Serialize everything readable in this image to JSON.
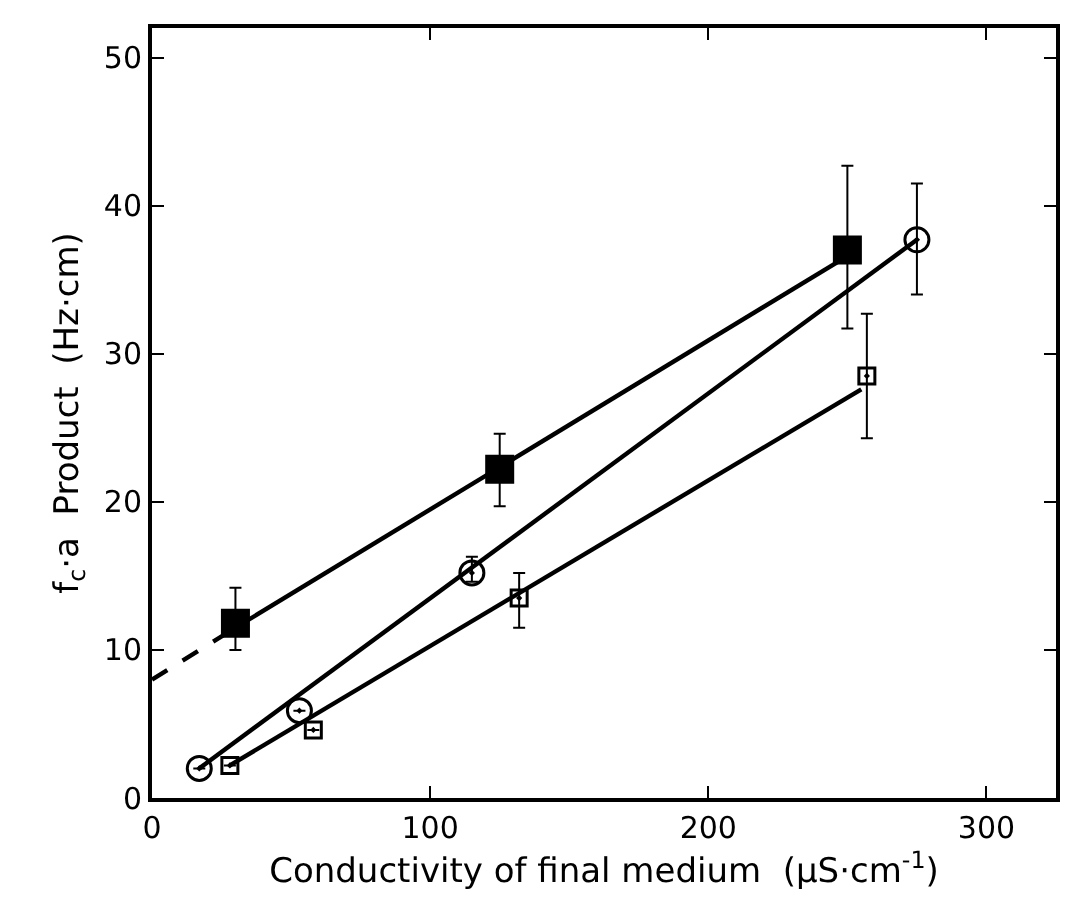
{
  "chart_data": {
    "type": "scatter",
    "xlabel": "Conductivity of final medium  (μS·cm$^{-1}$)",
    "ylabel": "f$_{c}$·a  Product  (Hz·cm)",
    "xlim": [
      0,
      325
    ],
    "xticks": [
      0,
      100,
      200,
      300
    ],
    "ylim": [
      0,
      52
    ],
    "yticks": [
      0,
      10,
      20,
      30,
      40,
      50
    ],
    "series": [
      {
        "type": "line",
        "color": "#000000",
        "x": [
          0,
          30
        ],
        "values": [
          8,
          11.5
        ],
        "line_style": "dashed",
        "marker": "none"
      },
      {
        "type": "line",
        "color": "#000000",
        "x": [
          30,
          250
        ],
        "values": [
          11.5,
          36.6
        ],
        "line_style": "solid",
        "marker": "none"
      },
      {
        "type": "line",
        "color": "#000000",
        "x": [
          17,
          275
        ],
        "values": [
          2,
          37.7
        ],
        "line_style": "solid",
        "marker": "none"
      },
      {
        "type": "line",
        "color": "#000000",
        "x": [
          28,
          255
        ],
        "values": [
          2.2,
          27.6
        ],
        "line_style": "solid",
        "marker": "none"
      },
      {
        "color": "#000000",
        "marker": "square",
        "x": [
          30,
          125,
          250
        ],
        "values": [
          11.8,
          22.2,
          37
        ],
        "errors": [
          [
            10,
            14.2
          ],
          [
            19.7,
            24.6
          ],
          [
            31.7,
            42.7
          ]
        ]
      },
      {
        "color": "#000000",
        "marker": "circle",
        "x": [
          17,
          53,
          115,
          275
        ],
        "values": [
          2,
          5.9,
          15.2,
          37.7
        ],
        "errors": [
          null,
          null,
          [
            14.6,
            16.3
          ],
          [
            34,
            41.5
          ]
        ]
      },
      {
        "color": "#000000",
        "marker": "square",
        "x": [
          28,
          58,
          132,
          257
        ],
        "values": [
          2.2,
          4.6,
          13.5,
          28.5
        ],
        "errors": [
          null,
          null,
          [
            11.5,
            15.2
          ],
          [
            24.3,
            32.7
          ]
        ]
      }
    ]
  }
}
